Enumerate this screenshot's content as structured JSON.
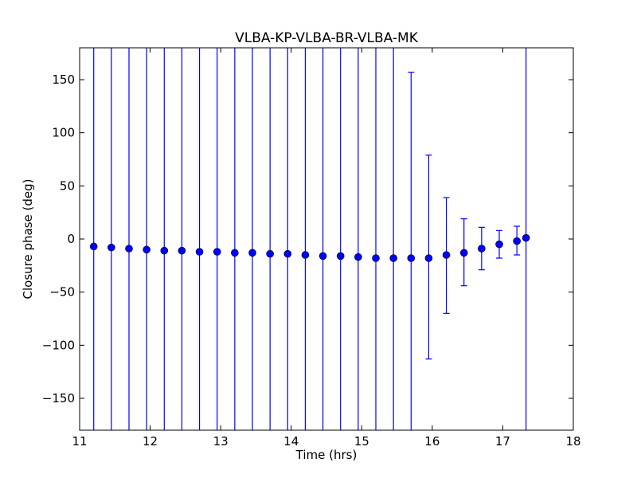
{
  "chart_data": {
    "type": "scatter",
    "title": "VLBA-KP-VLBA-BR-VLBA-MK",
    "xlabel": "Time (hrs)",
    "ylabel": "Closure phase (deg)",
    "xlim": [
      11,
      18
    ],
    "ylim": [
      -180,
      180
    ],
    "xticks": [
      11,
      12,
      13,
      14,
      15,
      16,
      17,
      18
    ],
    "yticks": [
      -150,
      -100,
      -50,
      0,
      50,
      100,
      150
    ],
    "xtick_labels": [
      "11",
      "12",
      "13",
      "14",
      "15",
      "16",
      "17",
      "18"
    ],
    "ytick_labels": [
      "−150",
      "−100",
      "−50",
      "0",
      "50",
      "100",
      "150"
    ],
    "grid": false,
    "marker_color": "#0000ff",
    "errorbar_color": "#0000ff",
    "points": [
      {
        "x": 11.2,
        "y": -7,
        "err_low": null,
        "err_high": null
      },
      {
        "x": 11.45,
        "y": -8,
        "err_low": null,
        "err_high": null
      },
      {
        "x": 11.7,
        "y": -9,
        "err_low": null,
        "err_high": null
      },
      {
        "x": 11.95,
        "y": -10,
        "err_low": null,
        "err_high": null
      },
      {
        "x": 12.2,
        "y": -11,
        "err_low": null,
        "err_high": null
      },
      {
        "x": 12.45,
        "y": -11,
        "err_low": null,
        "err_high": null
      },
      {
        "x": 12.7,
        "y": -12,
        "err_low": null,
        "err_high": null
      },
      {
        "x": 12.95,
        "y": -12,
        "err_low": null,
        "err_high": null
      },
      {
        "x": 13.2,
        "y": -13,
        "err_low": null,
        "err_high": null
      },
      {
        "x": 13.45,
        "y": -13,
        "err_low": null,
        "err_high": null
      },
      {
        "x": 13.7,
        "y": -14,
        "err_low": null,
        "err_high": null
      },
      {
        "x": 13.95,
        "y": -14,
        "err_low": null,
        "err_high": null
      },
      {
        "x": 14.2,
        "y": -15,
        "err_low": null,
        "err_high": null
      },
      {
        "x": 14.45,
        "y": -16,
        "err_low": null,
        "err_high": null
      },
      {
        "x": 14.7,
        "y": -16,
        "err_low": null,
        "err_high": null
      },
      {
        "x": 14.95,
        "y": -17,
        "err_low": null,
        "err_high": null
      },
      {
        "x": 15.2,
        "y": -18,
        "err_low": null,
        "err_high": null
      },
      {
        "x": 15.45,
        "y": -18,
        "err_low": null,
        "err_high": null
      },
      {
        "x": 15.7,
        "y": -18,
        "err_low": null,
        "err_high": 157
      },
      {
        "x": 15.95,
        "y": -18,
        "err_low": -113,
        "err_high": 79
      },
      {
        "x": 16.2,
        "y": -15,
        "err_low": -70,
        "err_high": 39
      },
      {
        "x": 16.45,
        "y": -13,
        "err_low": -44,
        "err_high": 19
      },
      {
        "x": 16.7,
        "y": -9,
        "err_low": -29,
        "err_high": 11
      },
      {
        "x": 16.95,
        "y": -5,
        "err_low": -18,
        "err_high": 8
      },
      {
        "x": 17.2,
        "y": -2,
        "err_low": -15,
        "err_high": 12
      },
      {
        "x": 17.33,
        "y": 1,
        "err_low": null,
        "err_high": null
      }
    ]
  }
}
